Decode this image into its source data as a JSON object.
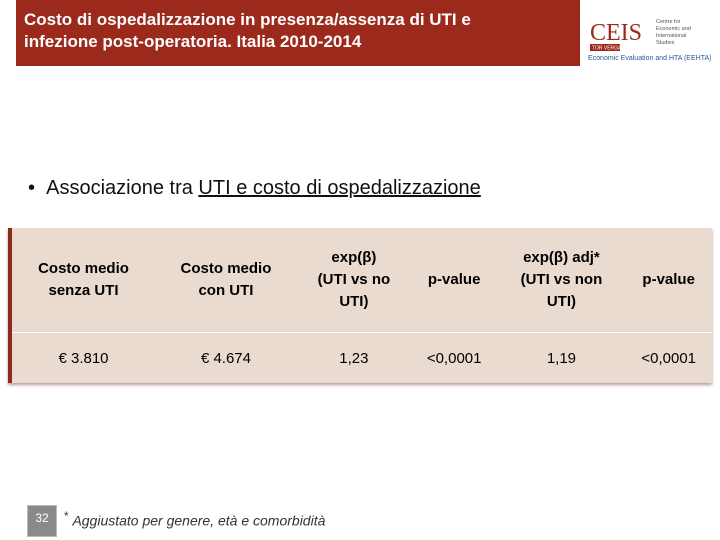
{
  "header": {
    "title_lines": [
      "Costo di ospedalizzazione in presenza/assenza di UTI e",
      "infezione post-operatoria. Italia 2010-2014"
    ]
  },
  "logo": {
    "name": "CEIS",
    "tagline_lines": [
      "Centre for",
      "Economic and",
      "International",
      "Studies"
    ],
    "badge": "TOR VERGATA",
    "unit": "Economic Evaluation and HTA (EEHTA)"
  },
  "bullet": {
    "text": "Associazione tra ",
    "underlined": "UTI e costo di ospedalizzazione"
  },
  "table": {
    "header": [
      [
        "Costo medio",
        "senza UTI"
      ],
      [
        "Costo medio",
        "con UTI"
      ],
      [
        "exp(β)",
        "(UTI vs no",
        "UTI)"
      ],
      [
        "p-value"
      ],
      [
        "exp(β) adj*",
        "(UTI vs non",
        "UTI)"
      ],
      [
        "p-value"
      ]
    ],
    "rows": [
      [
        "€ 3.810",
        "€ 4.674",
        "1,23",
        "<0,0001",
        "1,19",
        "<0,0001"
      ]
    ]
  },
  "footnote": {
    "mark": "*",
    "text": "Aggiustato per genere, età e comorbidità"
  },
  "page_number": "32"
}
